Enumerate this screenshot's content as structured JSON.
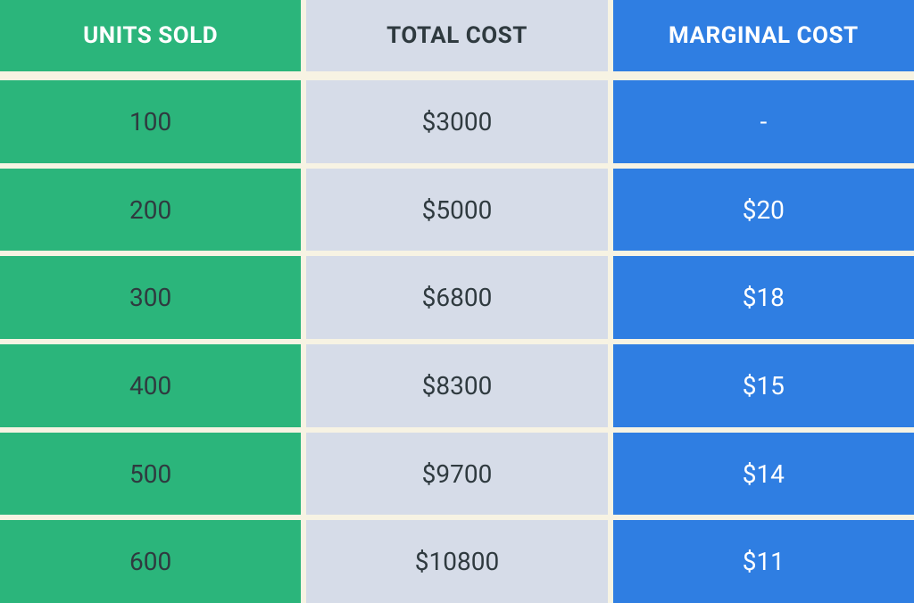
{
  "table": {
    "type": "table",
    "columns": [
      {
        "key": "units",
        "header": "UNITS SOLD",
        "bg_color": "#2bb57b",
        "header_text_color": "#ffffff",
        "data_text_color": "#2f3a3f"
      },
      {
        "key": "total_cost",
        "header": "TOTAL COST",
        "bg_color": "#d6dce8",
        "header_text_color": "#2f3a3f",
        "data_text_color": "#2f3a3f"
      },
      {
        "key": "marginal_cost",
        "header": "MARGINAL COST",
        "bg_color": "#2f7ee2",
        "header_text_color": "#ffffff",
        "data_text_color": "#ffffff"
      }
    ],
    "rows": [
      {
        "units": "100",
        "total_cost": "$3000",
        "marginal_cost": "-"
      },
      {
        "units": "200",
        "total_cost": "$5000",
        "marginal_cost": "$20"
      },
      {
        "units": "300",
        "total_cost": "$6800",
        "marginal_cost": "$18"
      },
      {
        "units": "400",
        "total_cost": "$8300",
        "marginal_cost": "$15"
      },
      {
        "units": "500",
        "total_cost": "$9700",
        "marginal_cost": "$14"
      },
      {
        "units": "600",
        "total_cost": "$10800",
        "marginal_cost": "$11"
      }
    ],
    "gap_color": "#f7f3e3",
    "header_fontsize": 26,
    "data_fontsize": 28,
    "header_fontweight": 700,
    "row_gap": 6
  }
}
